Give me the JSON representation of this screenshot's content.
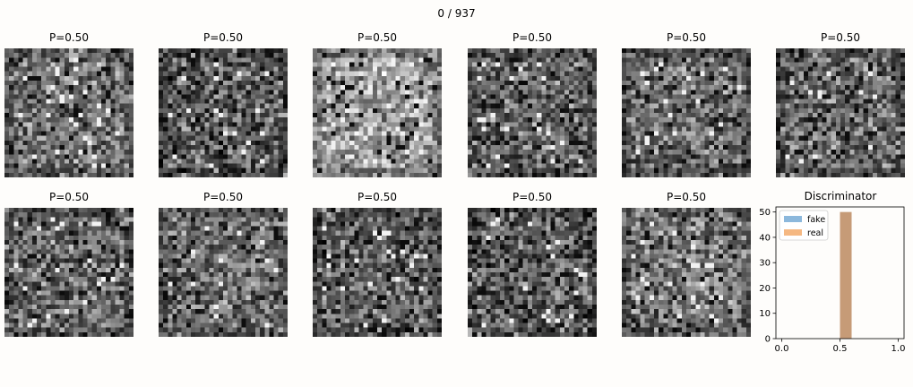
{
  "figure": {
    "title": "0 / 937",
    "panels": [
      {
        "label": "P=0.50"
      },
      {
        "label": "P=0.50"
      },
      {
        "label": "P=0.50"
      },
      {
        "label": "P=0.50"
      },
      {
        "label": "P=0.50"
      },
      {
        "label": "P=0.50"
      },
      {
        "label": "P=0.50"
      },
      {
        "label": "P=0.50"
      },
      {
        "label": "P=0.50"
      },
      {
        "label": "P=0.50"
      },
      {
        "label": "P=0.50"
      }
    ],
    "noise_brightness": [
      0.45,
      0.35,
      0.62,
      0.4,
      0.42,
      0.4,
      0.4,
      0.43,
      0.38,
      0.36,
      0.47
    ]
  },
  "chart_data": {
    "type": "bar",
    "title": "Discriminator",
    "xlim": [
      0,
      1
    ],
    "ylim": [
      0,
      52
    ],
    "xticks": [
      "0.0",
      "0.5",
      "1.0"
    ],
    "yticks": [
      "0",
      "10",
      "20",
      "30",
      "40",
      "50"
    ],
    "legend_position": "top-left",
    "series": [
      {
        "name": "fake",
        "color": "#8cb8dc",
        "bins": [
          {
            "x0": 0.5,
            "x1": 0.6,
            "count": 50
          }
        ]
      },
      {
        "name": "real",
        "color": "#f5b882",
        "bins": [
          {
            "x0": 0.5,
            "x1": 0.6,
            "count": 50
          }
        ]
      }
    ],
    "overlap_color": "#c69b77"
  }
}
